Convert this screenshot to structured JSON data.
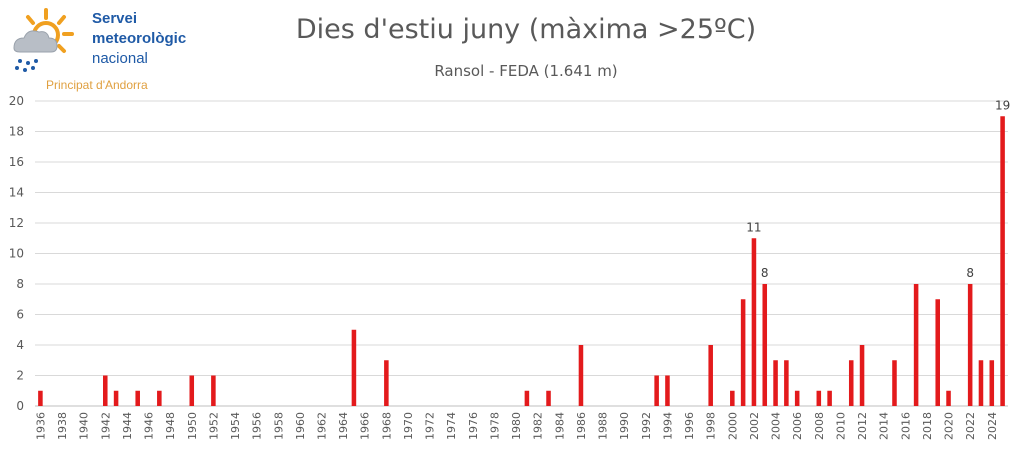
{
  "logo": {
    "line1": "Servei",
    "line2": "meteorològic",
    "line3": "nacional",
    "tagline": "Principat d'Andorra",
    "icon": "weather-sun-cloud-rain-icon"
  },
  "colors": {
    "bar": "#e31a1c",
    "grid": "#d9d9d9",
    "axis_text": "#595959",
    "logo_blue": "#1f5aa6",
    "logo_orange": "#f0a020"
  },
  "chart_data": {
    "type": "bar",
    "title": "Dies d'estiu juny (màxima >25ºC)",
    "subtitle": "Ransol - FEDA (1.641 m)",
    "xlabel": "",
    "ylabel": "",
    "ylim": [
      0,
      20
    ],
    "yticks": [
      0,
      2,
      4,
      6,
      8,
      10,
      12,
      14,
      16,
      18,
      20
    ],
    "grid": true,
    "legend": "none",
    "x_range": [
      1936,
      2025
    ],
    "x_tick_labels": [
      "1936",
      "1938",
      "1940",
      "1942",
      "1944",
      "1946",
      "1948",
      "1950",
      "1952",
      "1954",
      "1956",
      "1958",
      "1960",
      "1962",
      "1964",
      "1966",
      "1968",
      "1970",
      "1972",
      "1974",
      "1976",
      "1978",
      "1980",
      "1982",
      "1984",
      "1986",
      "1988",
      "1990",
      "1992",
      "1994",
      "1996",
      "1998",
      "2000",
      "2002",
      "2004",
      "2006",
      "2008",
      "2010",
      "2012",
      "2014",
      "2016",
      "2018",
      "2020",
      "2022",
      "2024"
    ],
    "points": [
      {
        "year": 1936,
        "value": 1
      },
      {
        "year": 1942,
        "value": 2
      },
      {
        "year": 1943,
        "value": 1
      },
      {
        "year": 1945,
        "value": 1
      },
      {
        "year": 1947,
        "value": 1
      },
      {
        "year": 1950,
        "value": 2
      },
      {
        "year": 1952,
        "value": 2
      },
      {
        "year": 1965,
        "value": 5
      },
      {
        "year": 1968,
        "value": 3
      },
      {
        "year": 1981,
        "value": 1
      },
      {
        "year": 1983,
        "value": 1
      },
      {
        "year": 1986,
        "value": 4
      },
      {
        "year": 1993,
        "value": 2
      },
      {
        "year": 1994,
        "value": 2
      },
      {
        "year": 1998,
        "value": 4
      },
      {
        "year": 2000,
        "value": 1
      },
      {
        "year": 2001,
        "value": 7
      },
      {
        "year": 2002,
        "value": 11,
        "label": "11"
      },
      {
        "year": 2003,
        "value": 8,
        "label": "8"
      },
      {
        "year": 2004,
        "value": 3
      },
      {
        "year": 2005,
        "value": 3
      },
      {
        "year": 2006,
        "value": 1
      },
      {
        "year": 2008,
        "value": 1
      },
      {
        "year": 2009,
        "value": 1
      },
      {
        "year": 2011,
        "value": 3
      },
      {
        "year": 2012,
        "value": 4
      },
      {
        "year": 2015,
        "value": 3
      },
      {
        "year": 2017,
        "value": 8
      },
      {
        "year": 2019,
        "value": 7
      },
      {
        "year": 2020,
        "value": 1
      },
      {
        "year": 2022,
        "value": 8,
        "label": "8"
      },
      {
        "year": 2023,
        "value": 3
      },
      {
        "year": 2024,
        "value": 3
      },
      {
        "year": 2025,
        "value": 19,
        "label": "19"
      }
    ]
  }
}
